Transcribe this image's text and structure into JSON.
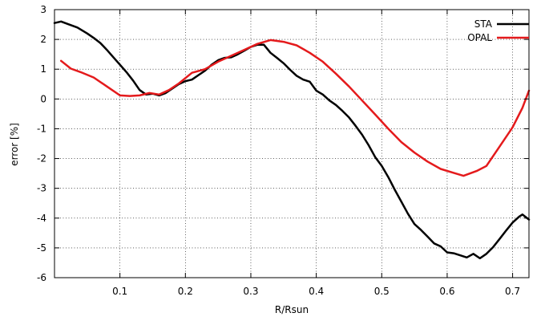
{
  "chart_data": {
    "type": "line",
    "xlabel": "R/Rsun",
    "ylabel": "error [%]",
    "xlim": [
      0,
      0.725
    ],
    "ylim": [
      -6,
      3
    ],
    "xticks": [
      0.1,
      0.2,
      0.3,
      0.4,
      0.5,
      0.6,
      0.7
    ],
    "xtick_labels": [
      "0.1",
      "0.2",
      "0.3",
      "0.4",
      "0.5",
      "0.6",
      "0.7"
    ],
    "yticks": [
      -6,
      -5,
      -4,
      -3,
      -2,
      -1,
      0,
      1,
      2,
      3
    ],
    "ytick_labels": [
      "-6",
      "-5",
      "-4",
      "-3",
      "-2",
      "-1",
      "0",
      "1",
      "2",
      "3"
    ],
    "grid": true,
    "legend_position": "top-right",
    "series": [
      {
        "name": "STA",
        "color": "#000000",
        "x": [
          0.0,
          0.01,
          0.02,
          0.035,
          0.05,
          0.06,
          0.07,
          0.08,
          0.09,
          0.1,
          0.11,
          0.12,
          0.13,
          0.14,
          0.15,
          0.16,
          0.17,
          0.18,
          0.19,
          0.2,
          0.21,
          0.22,
          0.23,
          0.24,
          0.25,
          0.26,
          0.27,
          0.28,
          0.29,
          0.3,
          0.31,
          0.32,
          0.33,
          0.34,
          0.35,
          0.36,
          0.37,
          0.38,
          0.39,
          0.4,
          0.41,
          0.42,
          0.43,
          0.44,
          0.45,
          0.46,
          0.47,
          0.48,
          0.49,
          0.5,
          0.51,
          0.52,
          0.53,
          0.54,
          0.55,
          0.56,
          0.57,
          0.58,
          0.59,
          0.6,
          0.61,
          0.62,
          0.63,
          0.64,
          0.65,
          0.66,
          0.67,
          0.68,
          0.69,
          0.7,
          0.71,
          0.715,
          0.725
        ],
        "y": [
          2.55,
          2.6,
          2.52,
          2.4,
          2.2,
          2.05,
          1.88,
          1.65,
          1.4,
          1.15,
          0.9,
          0.62,
          0.3,
          0.15,
          0.18,
          0.12,
          0.2,
          0.35,
          0.5,
          0.6,
          0.65,
          0.8,
          0.95,
          1.15,
          1.3,
          1.38,
          1.4,
          1.5,
          1.62,
          1.75,
          1.82,
          1.82,
          1.55,
          1.38,
          1.2,
          0.98,
          0.78,
          0.65,
          0.58,
          0.28,
          0.15,
          -0.05,
          -0.2,
          -0.4,
          -0.62,
          -0.9,
          -1.2,
          -1.55,
          -1.95,
          -2.25,
          -2.62,
          -3.05,
          -3.45,
          -3.85,
          -4.2,
          -4.4,
          -4.62,
          -4.85,
          -4.95,
          -5.15,
          -5.18,
          -5.25,
          -5.32,
          -5.2,
          -5.35,
          -5.2,
          -4.98,
          -4.7,
          -4.42,
          -4.15,
          -3.95,
          -3.88,
          -4.05
        ]
      },
      {
        "name": "OPAL",
        "color": "#e41a1c",
        "x": [
          0.01,
          0.025,
          0.04,
          0.06,
          0.08,
          0.1,
          0.115,
          0.13,
          0.145,
          0.16,
          0.175,
          0.19,
          0.21,
          0.23,
          0.25,
          0.27,
          0.29,
          0.31,
          0.33,
          0.35,
          0.37,
          0.39,
          0.41,
          0.43,
          0.45,
          0.47,
          0.49,
          0.51,
          0.53,
          0.55,
          0.57,
          0.59,
          0.61,
          0.625,
          0.645,
          0.66,
          0.68,
          0.7,
          0.715,
          0.725
        ],
        "y": [
          1.28,
          1.02,
          0.9,
          0.72,
          0.42,
          0.12,
          0.1,
          0.12,
          0.2,
          0.15,
          0.3,
          0.52,
          0.88,
          1.0,
          1.25,
          1.45,
          1.65,
          1.85,
          1.98,
          1.92,
          1.8,
          1.55,
          1.25,
          0.85,
          0.42,
          -0.05,
          -0.52,
          -1.0,
          -1.45,
          -1.8,
          -2.1,
          -2.35,
          -2.48,
          -2.58,
          -2.42,
          -2.25,
          -1.6,
          -0.95,
          -0.3,
          0.28
        ]
      }
    ]
  }
}
